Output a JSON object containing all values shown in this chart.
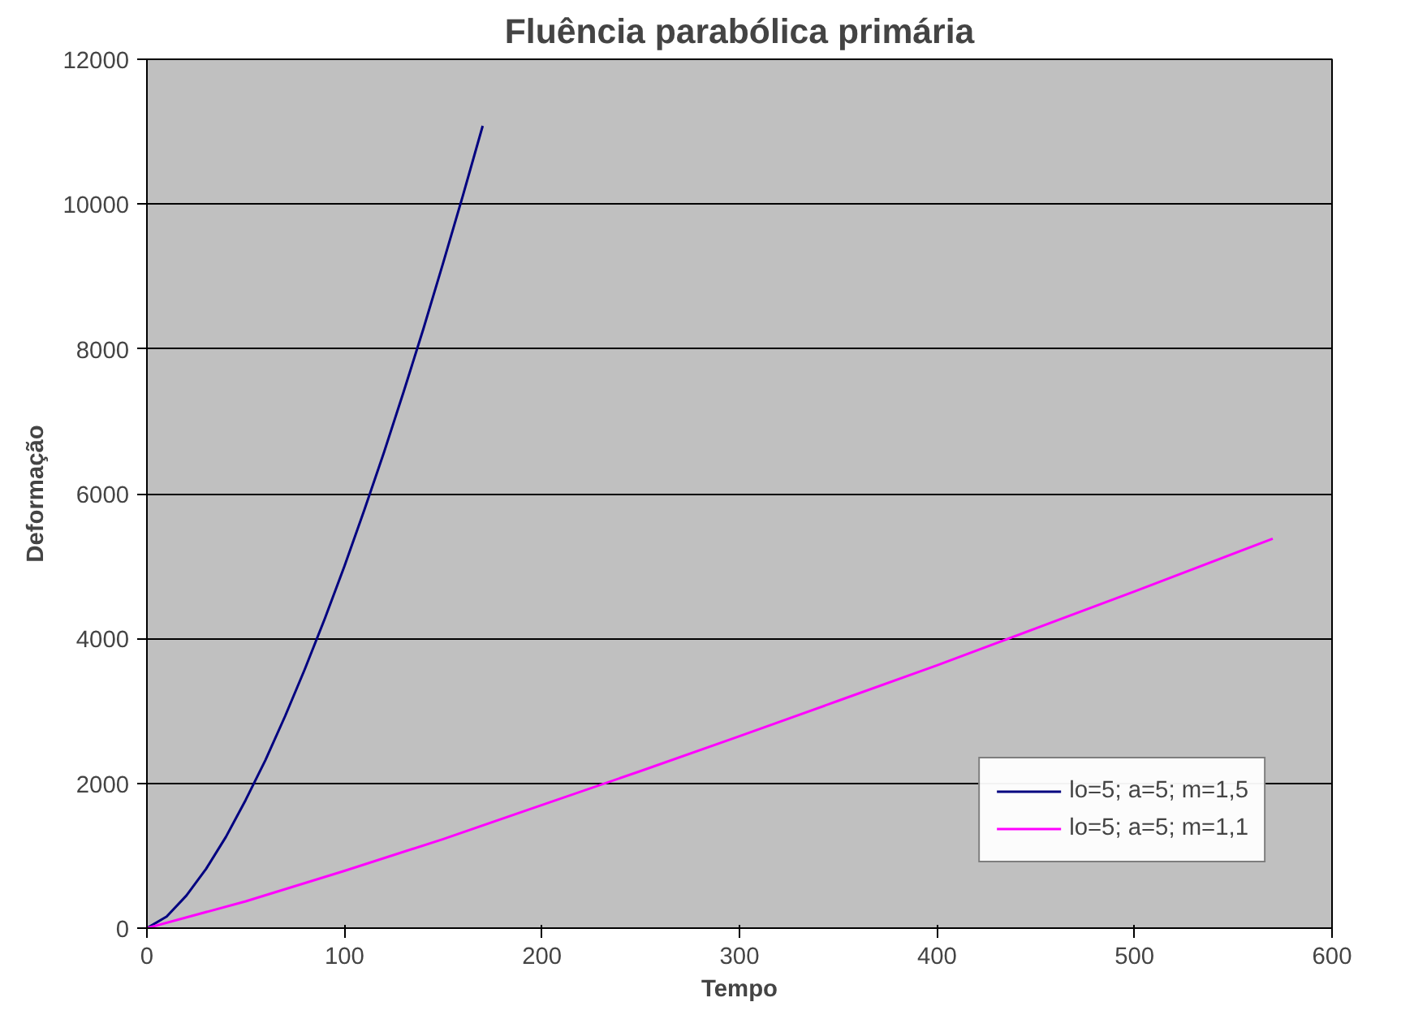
{
  "chart_data": {
    "type": "line",
    "title": "Fluência parabólica primária",
    "xlabel": "Tempo",
    "ylabel": "Deformação",
    "xlim": [
      0,
      600
    ],
    "xticks": [
      0,
      100,
      200,
      300,
      400,
      500,
      600
    ],
    "ylim": [
      0,
      12000
    ],
    "yticks": [
      0,
      2000,
      4000,
      6000,
      8000,
      10000,
      12000
    ],
    "grid": "y",
    "legend": "bottom right",
    "marker": "none",
    "line_style": "solid",
    "series": [
      {
        "name": "lo=5; a=5; m=1,5",
        "color": "#000080",
        "x": [
          0,
          10,
          20,
          30,
          40,
          50,
          60,
          70,
          80,
          90,
          100,
          110,
          120,
          130,
          140,
          150,
          160,
          170
        ],
        "values": [
          0,
          160,
          450,
          820,
          1260,
          1770,
          2320,
          2930,
          3580,
          4270,
          5000,
          5770,
          6570,
          7410,
          8280,
          9190,
          10120,
          11080
        ]
      },
      {
        "name": "lo=5; a=5; m=1,1",
        "color": "#ff00ff",
        "x": [
          0,
          50,
          100,
          150,
          200,
          250,
          300,
          350,
          400,
          450,
          500,
          570
        ],
        "values": [
          0,
          370,
          790,
          1230,
          1700,
          2170,
          2650,
          3140,
          3630,
          4140,
          4650,
          5380
        ]
      }
    ]
  }
}
